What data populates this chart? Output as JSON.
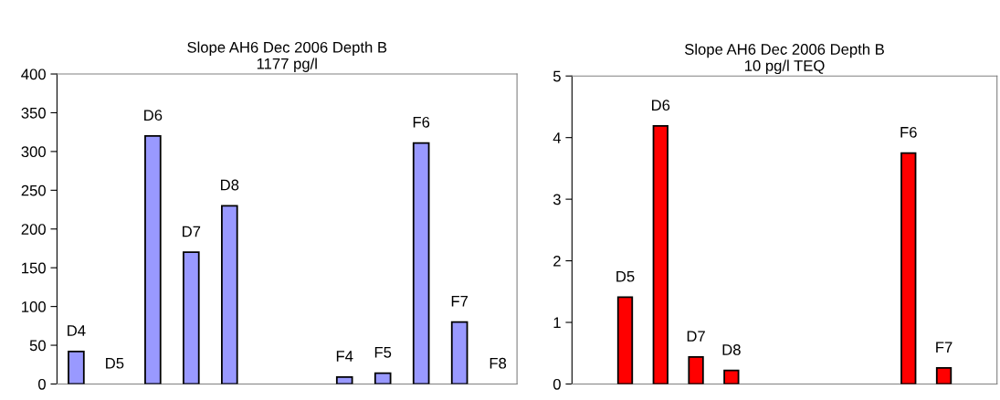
{
  "chart_data": [
    {
      "type": "bar",
      "title": "Slope AH6 Dec 2006 Depth B",
      "subtitle": "1177 pg/l",
      "categories": [
        "D4",
        "D5",
        "D6",
        "D7",
        "D8",
        null,
        null,
        "F4",
        "F5",
        "F6",
        "F7",
        "F8"
      ],
      "values": [
        42,
        0,
        320,
        170,
        230,
        null,
        null,
        9,
        14,
        311,
        80,
        0
      ],
      "color": "#9999ff",
      "ylim": [
        0,
        400
      ],
      "yticks": [
        0,
        50,
        100,
        150,
        200,
        250,
        300,
        350,
        400
      ],
      "tick_labels": "y",
      "grid": false,
      "legend": false
    },
    {
      "type": "bar",
      "title": "Slope AH6 Dec 2006 Depth B",
      "subtitle": "10 pg/l TEQ",
      "categories": [
        null,
        "D5",
        "D6",
        "D7",
        "D8",
        null,
        null,
        null,
        null,
        "F6",
        "F7",
        null
      ],
      "values": [
        null,
        1.41,
        4.19,
        0.44,
        0.22,
        null,
        null,
        null,
        null,
        3.75,
        0.26,
        null
      ],
      "color": "#ff0000",
      "ylim": [
        0,
        5
      ],
      "yticks": [
        0,
        1,
        2,
        3,
        4,
        5
      ],
      "tick_labels": "y",
      "grid": false,
      "legend": false
    }
  ]
}
